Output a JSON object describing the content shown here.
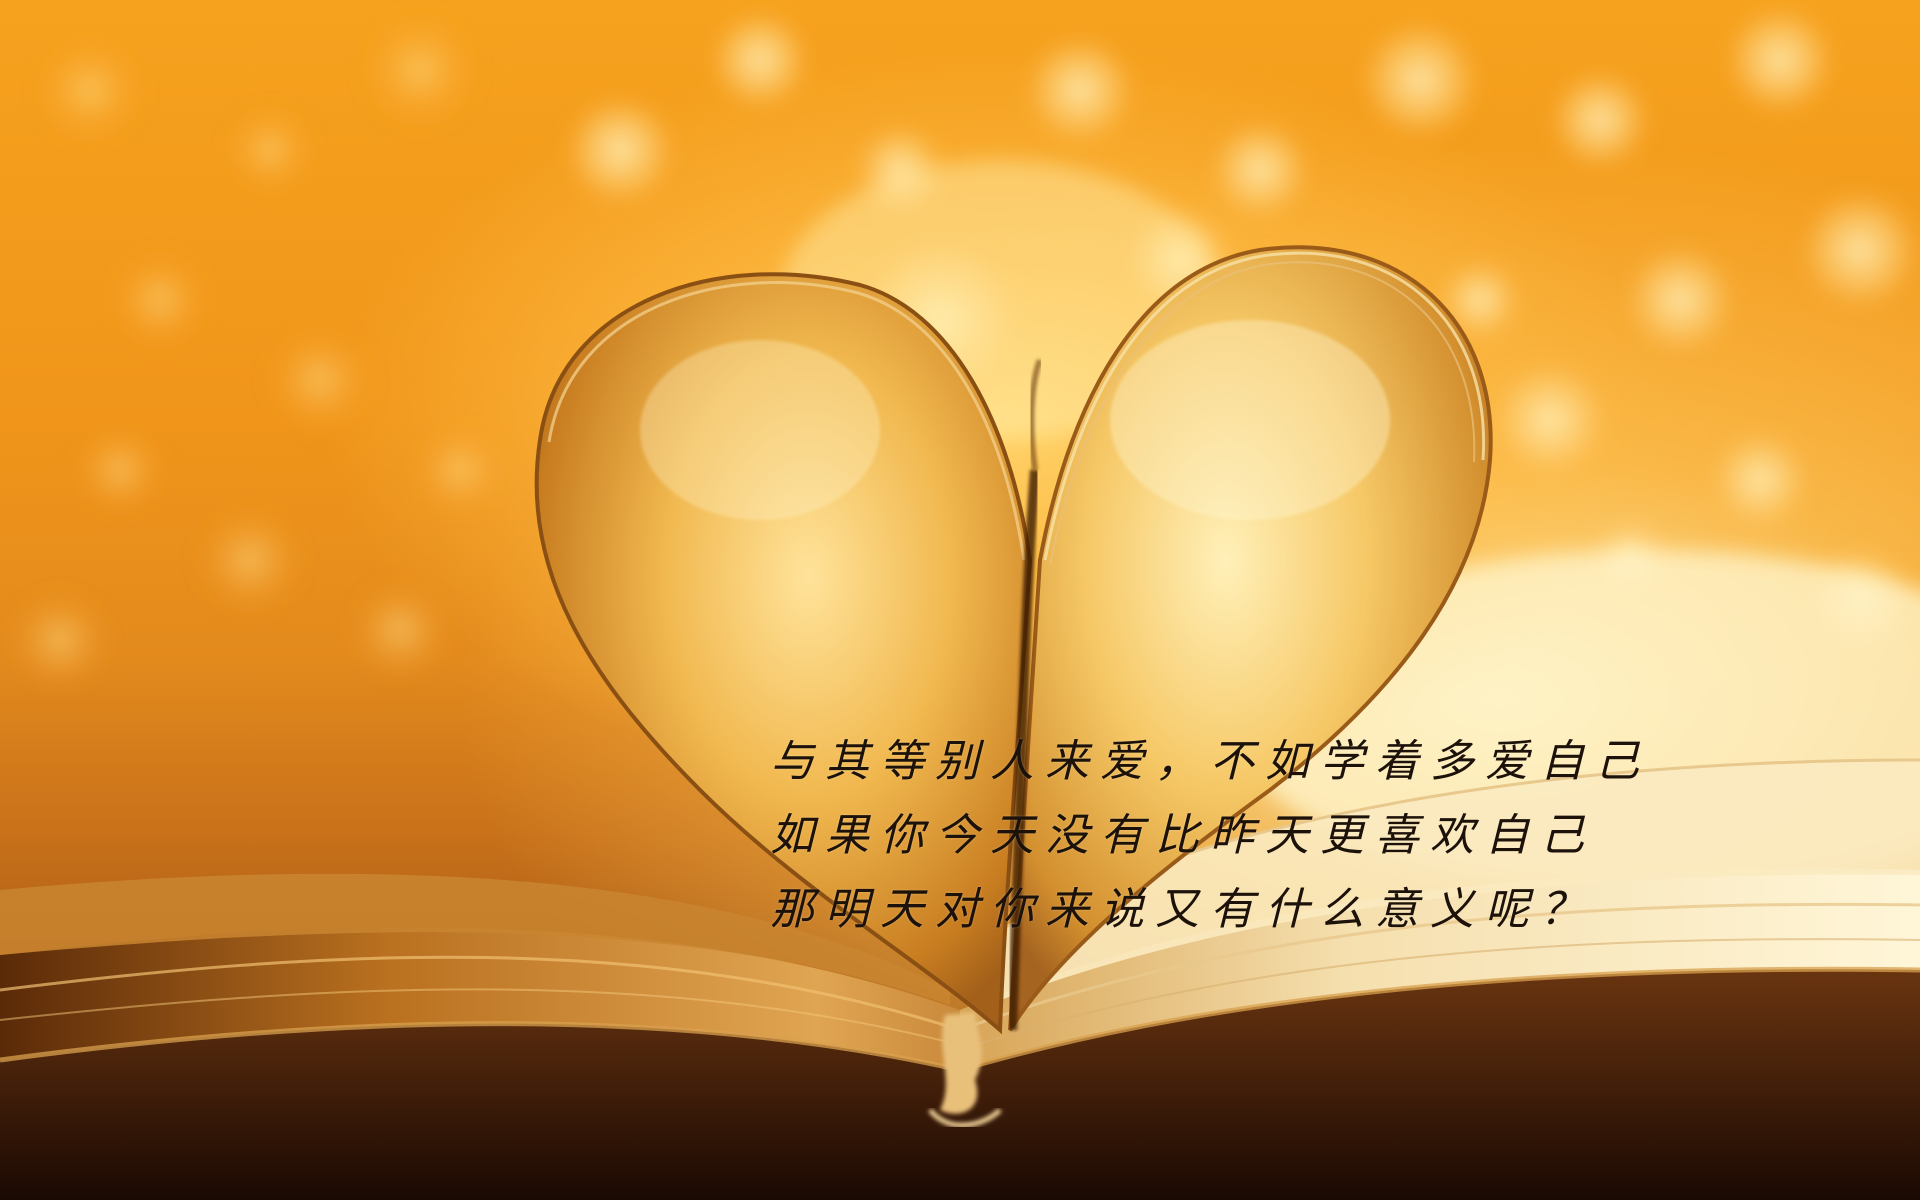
{
  "quote": {
    "lines": [
      "与其等别人来爱，不如学着多爱自己",
      "如果你今天没有比昨天更喜欢自己",
      "那明天对你来说又有什么意义呢？"
    ]
  },
  "scene": {
    "subject": "heart-shaped-book-pages",
    "palette": {
      "background_orange": "#f0951a",
      "highlight_yellow": "#ffe9a8",
      "page_gold": "#e8b456",
      "book_shadow": "#2a1204",
      "text_color": "#1c120a"
    }
  }
}
